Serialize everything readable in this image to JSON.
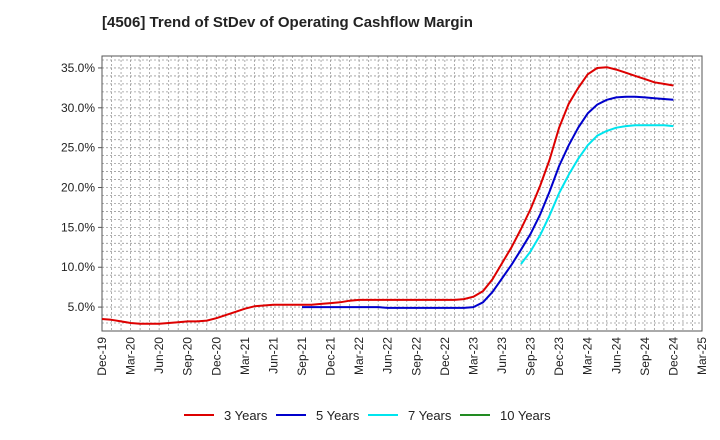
{
  "chart_data": {
    "type": "line",
    "title": "[4506]  Trend of StDev of Operating Cashflow Margin",
    "xlabel": "",
    "ylabel": "",
    "x_ticks": [
      "Dec-19",
      "Mar-20",
      "Jun-20",
      "Sep-20",
      "Dec-20",
      "Mar-21",
      "Jun-21",
      "Sep-21",
      "Dec-21",
      "Mar-22",
      "Jun-22",
      "Sep-22",
      "Dec-22",
      "Mar-23",
      "Jun-23",
      "Sep-23",
      "Dec-23",
      "Mar-24",
      "Jun-24",
      "Sep-24",
      "Dec-24",
      "Mar-25"
    ],
    "y_ticks": [
      "5.0%",
      "10.0%",
      "15.0%",
      "20.0%",
      "25.0%",
      "30.0%",
      "35.0%"
    ],
    "y_tick_values": [
      5,
      10,
      15,
      20,
      25,
      30,
      35
    ],
    "ylim": [
      2,
      36.5
    ],
    "grid": true,
    "legend_position": "bottom",
    "series": [
      {
        "name": "3 Years",
        "color": "#dd0000",
        "x": [
          "Dec-19",
          "Jan-20",
          "Feb-20",
          "Mar-20",
          "Apr-20",
          "May-20",
          "Jun-20",
          "Jul-20",
          "Aug-20",
          "Sep-20",
          "Oct-20",
          "Nov-20",
          "Dec-20",
          "Jan-21",
          "Feb-21",
          "Mar-21",
          "Apr-21",
          "May-21",
          "Jun-21",
          "Jul-21",
          "Aug-21",
          "Sep-21",
          "Oct-21",
          "Nov-21",
          "Dec-21",
          "Jan-22",
          "Feb-22",
          "Mar-22",
          "Apr-22",
          "May-22",
          "Jun-22",
          "Jul-22",
          "Aug-22",
          "Sep-22",
          "Oct-22",
          "Nov-22",
          "Dec-22",
          "Jan-23",
          "Feb-23",
          "Mar-23",
          "Apr-23",
          "May-23",
          "Jun-23",
          "Jul-23",
          "Aug-23",
          "Sep-23",
          "Oct-23",
          "Nov-23",
          "Dec-23",
          "Jan-24",
          "Feb-24",
          "Mar-24",
          "Apr-24",
          "May-24",
          "Jun-24",
          "Jul-24",
          "Aug-24",
          "Sep-24",
          "Oct-24",
          "Nov-24",
          "Dec-24"
        ],
        "values": [
          3.5,
          3.4,
          3.2,
          3.0,
          2.9,
          2.9,
          2.9,
          3.0,
          3.1,
          3.2,
          3.2,
          3.3,
          3.6,
          4.0,
          4.4,
          4.8,
          5.1,
          5.2,
          5.3,
          5.3,
          5.3,
          5.3,
          5.3,
          5.4,
          5.5,
          5.6,
          5.8,
          5.9,
          5.9,
          5.9,
          5.9,
          5.9,
          5.9,
          5.9,
          5.9,
          5.9,
          5.9,
          5.9,
          6.0,
          6.3,
          7.0,
          8.5,
          10.5,
          12.5,
          14.8,
          17.3,
          20.2,
          23.5,
          27.5,
          30.5,
          32.5,
          34.2,
          35.0,
          35.1,
          34.8,
          34.4,
          34.0,
          33.6,
          33.2,
          33.0,
          32.8
        ]
      },
      {
        "name": "5 Years",
        "color": "#0000cc",
        "x": [
          "Sep-21",
          "Oct-21",
          "Nov-21",
          "Dec-21",
          "Jan-22",
          "Feb-22",
          "Mar-22",
          "Apr-22",
          "May-22",
          "Jun-22",
          "Jul-22",
          "Aug-22",
          "Sep-22",
          "Oct-22",
          "Nov-22",
          "Dec-22",
          "Jan-23",
          "Feb-23",
          "Mar-23",
          "Apr-23",
          "May-23",
          "Jun-23",
          "Jul-23",
          "Aug-23",
          "Sep-23",
          "Oct-23",
          "Nov-23",
          "Dec-23",
          "Jan-24",
          "Feb-24",
          "Mar-24",
          "Apr-24",
          "May-24",
          "Jun-24",
          "Jul-24",
          "Aug-24",
          "Sep-24",
          "Oct-24",
          "Nov-24",
          "Dec-24"
        ],
        "values": [
          5.0,
          5.0,
          5.0,
          5.0,
          5.0,
          5.0,
          5.0,
          5.0,
          5.0,
          4.9,
          4.9,
          4.9,
          4.9,
          4.9,
          4.9,
          4.9,
          4.9,
          4.9,
          5.0,
          5.6,
          6.9,
          8.6,
          10.3,
          12.2,
          14.2,
          16.6,
          19.5,
          22.7,
          25.3,
          27.5,
          29.3,
          30.4,
          31.0,
          31.3,
          31.4,
          31.4,
          31.3,
          31.2,
          31.1,
          31.0
        ]
      },
      {
        "name": "7 Years",
        "color": "#00e5ee",
        "x": [
          "Aug-23",
          "Sep-23",
          "Oct-23",
          "Nov-23",
          "Dec-23",
          "Jan-24",
          "Feb-24",
          "Mar-24",
          "Apr-24",
          "May-24",
          "Jun-24",
          "Jul-24",
          "Aug-24",
          "Sep-24",
          "Oct-24",
          "Nov-24",
          "Dec-24"
        ],
        "values": [
          10.4,
          12.0,
          14.0,
          16.5,
          19.3,
          21.6,
          23.6,
          25.3,
          26.5,
          27.1,
          27.5,
          27.7,
          27.8,
          27.8,
          27.8,
          27.8,
          27.7
        ]
      },
      {
        "name": "10 Years",
        "color": "#228b22",
        "x": [],
        "values": []
      }
    ]
  }
}
